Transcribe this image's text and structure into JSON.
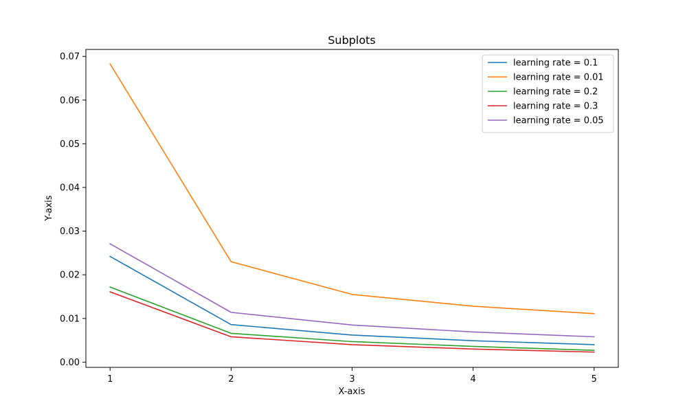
{
  "chart_data": {
    "type": "line",
    "title": "Subplots",
    "xlabel": "X-axis",
    "ylabel": "Y-axis",
    "x": [
      1,
      2,
      3,
      4,
      5
    ],
    "xticks": [
      "1",
      "2",
      "3",
      "4",
      "5"
    ],
    "yticks": [
      "0.00",
      "0.01",
      "0.02",
      "0.03",
      "0.04",
      "0.05",
      "0.06",
      "0.07"
    ],
    "ytick_values": [
      0.0,
      0.01,
      0.02,
      0.03,
      0.04,
      0.05,
      0.06,
      0.07
    ],
    "xlim": [
      0.8,
      5.2
    ],
    "ylim": [
      -0.0012,
      0.0716
    ],
    "grid": false,
    "legend_position": "top-right",
    "series": [
      {
        "name": "learning rate = 0.1",
        "color": "#1f77b4",
        "values": [
          0.0242,
          0.0086,
          0.0062,
          0.0049,
          0.004
        ]
      },
      {
        "name": "learning rate = 0.01",
        "color": "#ff7f0e",
        "values": [
          0.0683,
          0.023,
          0.0155,
          0.0128,
          0.0111
        ]
      },
      {
        "name": "learning rate = 0.2",
        "color": "#2ca02c",
        "values": [
          0.0172,
          0.0066,
          0.0047,
          0.0036,
          0.0027
        ]
      },
      {
        "name": "learning rate = 0.3",
        "color": "#d62728",
        "values": [
          0.0161,
          0.0058,
          0.004,
          0.003,
          0.0023
        ]
      },
      {
        "name": "learning rate = 0.05",
        "color": "#9467bd",
        "values": [
          0.0271,
          0.0114,
          0.0085,
          0.0069,
          0.0058
        ]
      }
    ]
  }
}
